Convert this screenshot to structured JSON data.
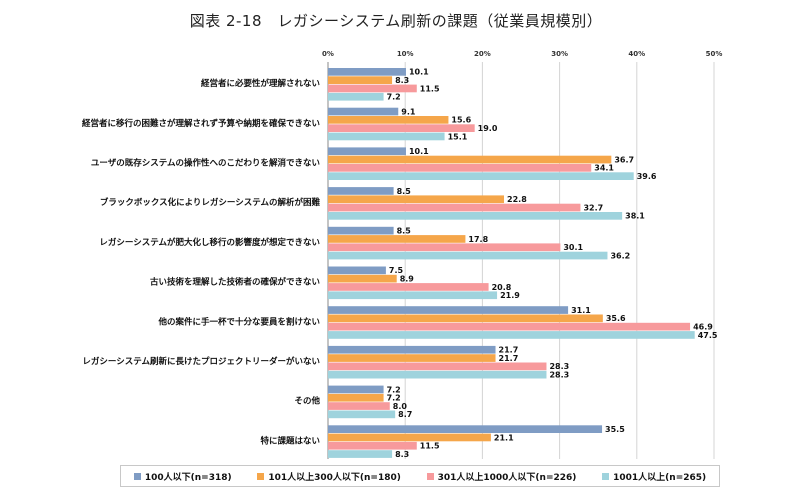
{
  "chart_data": {
    "type": "bar",
    "orientation": "horizontal",
    "title": "図表 2-18　レガシーシステム刷新の課題（従業員規模別）",
    "xlim": [
      0,
      50
    ],
    "xticks": [
      "0%",
      "10%",
      "20%",
      "30%",
      "40%",
      "50%"
    ],
    "grid": true,
    "legend_position": "bottom",
    "categories": [
      "経営者に必要性が理解されない",
      "経営者に移行の困難さが理解されず予算や納期を確保できない",
      "ユーザの既存システムの操作性へのこだわりを解消できない",
      "ブラックボックス化によりレガシーシステムの解析が困難",
      "レガシーシステムが肥大化し移行の影響度が想定できない",
      "古い技術を理解した技術者の確保ができない",
      "他の案件に手一杯で十分な要員を割けない",
      "レガシーシステム刷新に長けたプロジェクトリーダーがいない",
      "その他",
      "特に課題はない"
    ],
    "series": [
      {
        "name": "100人以下(n=318)",
        "color": "#7f9cc4",
        "values": [
          10.1,
          9.1,
          10.1,
          8.5,
          8.5,
          7.5,
          31.1,
          21.7,
          7.2,
          35.5
        ]
      },
      {
        "name": "101人以上300人以下(n=180)",
        "color": "#f5a64a",
        "values": [
          8.3,
          15.6,
          36.7,
          22.8,
          17.8,
          8.9,
          35.6,
          21.7,
          7.2,
          21.1
        ]
      },
      {
        "name": "301人以上1000人以下(n=226)",
        "color": "#f79a9c",
        "values": [
          11.5,
          19.0,
          34.1,
          32.7,
          30.1,
          20.8,
          46.9,
          28.3,
          8.0,
          11.5
        ]
      },
      {
        "name": "1001人以上(n=265)",
        "color": "#9fd3dd",
        "values": [
          7.2,
          15.1,
          39.6,
          38.1,
          36.2,
          21.9,
          47.5,
          28.3,
          8.7,
          8.3
        ]
      }
    ]
  }
}
